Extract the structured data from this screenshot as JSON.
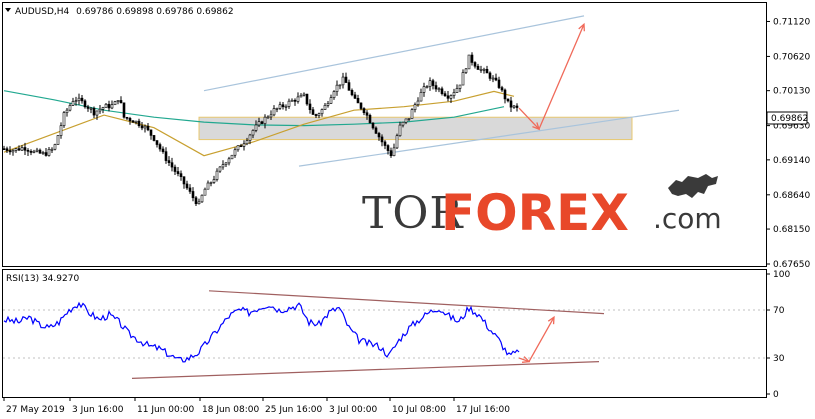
{
  "header": {
    "symbol": "AUDUSD,H4",
    "ohlc": "0.69786 0.69898 0.69786 0.69862"
  },
  "price_axis": {
    "ticks": [
      "0.71120",
      "0.70620",
      "0.70130",
      "0.69630",
      "0.69140",
      "0.68640",
      "0.68150",
      "0.67650"
    ],
    "current_price": "0.69862"
  },
  "rsi_panel": {
    "label": "RSI(13) 34.9270",
    "ticks": [
      "100",
      "70",
      "30",
      "0"
    ]
  },
  "time_axis": {
    "labels": [
      "27 May 2019",
      "3 Jun 16:00",
      "11 Jun 00:00",
      "18 Jun 08:00",
      "25 Jun 16:00",
      "3 Jul 00:00",
      "10 Jul 08:00",
      "17 Jul 16:00"
    ]
  },
  "watermark": {
    "part1": "TOR",
    "part2": "FOREX",
    "part3": ".com"
  },
  "colors": {
    "candle": "#000000",
    "ma_fast": "#c8a030",
    "ma_slow": "#22a890",
    "channel": "#a9c4dc",
    "zone_fill": "#d9d9d9",
    "zone_border": "#e8c870",
    "forecast_arrow": "#f06a5a",
    "rsi_line": "#0000ff",
    "rsi_trend": "#a06060"
  },
  "chart_data": [
    {
      "type": "candlestick",
      "title": "AUDUSD,H4",
      "ylim": [
        0.6765,
        0.7137
      ],
      "x_labels": [
        "27 May 2019",
        "3 Jun 16:00",
        "11 Jun 00:00",
        "18 Jun 08:00",
        "25 Jun 16:00",
        "3 Jul 00:00",
        "10 Jul 08:00",
        "17 Jul 16:00"
      ],
      "close_path": [
        [
          0,
          0.693
        ],
        [
          10,
          0.6928
        ],
        [
          20,
          0.6932
        ],
        [
          30,
          0.6925
        ],
        [
          40,
          0.6922
        ],
        [
          50,
          0.693
        ],
        [
          60,
          0.6978
        ],
        [
          70,
          0.7002
        ],
        [
          80,
          0.6995
        ],
        [
          90,
          0.6982
        ],
        [
          100,
          0.699
        ],
        [
          110,
          0.6992
        ],
        [
          115,
          0.7005
        ],
        [
          120,
          0.6975
        ],
        [
          130,
          0.697
        ],
        [
          140,
          0.6962
        ],
        [
          150,
          0.6945
        ],
        [
          160,
          0.692
        ],
        [
          170,
          0.69
        ],
        [
          180,
          0.688
        ],
        [
          190,
          0.6858
        ],
        [
          195,
          0.685
        ],
        [
          200,
          0.687
        ],
        [
          210,
          0.6888
        ],
        [
          220,
          0.691
        ],
        [
          230,
          0.6925
        ],
        [
          240,
          0.694
        ],
        [
          250,
          0.6958
        ],
        [
          260,
          0.6972
        ],
        [
          270,
          0.6985
        ],
        [
          280,
          0.6992
        ],
        [
          290,
          0.7
        ],
        [
          300,
          0.7005
        ],
        [
          310,
          0.6975
        ],
        [
          320,
          0.6988
        ],
        [
          330,
          0.7015
        ],
        [
          340,
          0.703
        ],
        [
          350,
          0.7
        ],
        [
          360,
          0.6985
        ],
        [
          370,
          0.696
        ],
        [
          380,
          0.6935
        ],
        [
          388,
          0.692
        ],
        [
          395,
          0.696
        ],
        [
          405,
          0.6975
        ],
        [
          415,
          0.7005
        ],
        [
          425,
          0.7025
        ],
        [
          435,
          0.7015
        ],
        [
          445,
          0.7005
        ],
        [
          455,
          0.702
        ],
        [
          465,
          0.706
        ],
        [
          475,
          0.7045
        ],
        [
          485,
          0.7035
        ],
        [
          495,
          0.702
        ],
        [
          505,
          0.6992
        ],
        [
          515,
          0.6986
        ]
      ],
      "ma_fast": [
        [
          0,
          0.6925
        ],
        [
          100,
          0.6978
        ],
        [
          150,
          0.696
        ],
        [
          200,
          0.692
        ],
        [
          250,
          0.694
        ],
        [
          300,
          0.6965
        ],
        [
          350,
          0.6985
        ],
        [
          400,
          0.699
        ],
        [
          450,
          0.6998
        ],
        [
          490,
          0.7012
        ],
        [
          510,
          0.7005
        ]
      ],
      "ma_slow": [
        [
          0,
          0.7013
        ],
        [
          50,
          0.7
        ],
        [
          100,
          0.6985
        ],
        [
          150,
          0.6975
        ],
        [
          200,
          0.6968
        ],
        [
          250,
          0.6964
        ],
        [
          300,
          0.6963
        ],
        [
          350,
          0.6965
        ],
        [
          400,
          0.6968
        ],
        [
          450,
          0.6975
        ],
        [
          500,
          0.699
        ]
      ],
      "forecast_path": [
        [
          515,
          0.6988
        ],
        [
          535,
          0.6958
        ],
        [
          580,
          0.7108
        ]
      ]
    },
    {
      "type": "line",
      "title": "RSI(13) 34.9270",
      "ylim": [
        0,
        100
      ],
      "yticks": [
        100,
        70,
        30,
        0
      ],
      "series": [
        {
          "name": "RSI(13) 34.9270",
          "x": [
            0,
            15,
            25,
            35,
            45,
            55,
            65,
            75,
            85,
            95,
            105,
            115,
            125,
            135,
            145,
            155,
            165,
            175,
            185,
            195,
            205,
            215,
            225,
            235,
            245,
            255,
            265,
            275,
            285,
            295,
            305,
            315,
            325,
            335,
            345,
            355,
            365,
            375,
            385,
            395,
            405,
            415,
            425,
            435,
            445,
            455,
            465,
            475,
            485,
            495,
            505,
            515
          ],
          "values": [
            62,
            60,
            64,
            58,
            55,
            60,
            70,
            76,
            68,
            62,
            66,
            60,
            50,
            45,
            40,
            38,
            33,
            28,
            30,
            35,
            45,
            55,
            65,
            70,
            68,
            72,
            75,
            70,
            72,
            74,
            60,
            58,
            68,
            72,
            55,
            45,
            42,
            40,
            32,
            45,
            55,
            62,
            68,
            72,
            65,
            60,
            72,
            66,
            55,
            45,
            32,
            35
          ]
        }
      ],
      "forecast_path": [
        [
          515,
          30
        ],
        [
          525,
          27
        ],
        [
          550,
          64
        ]
      ]
    }
  ]
}
